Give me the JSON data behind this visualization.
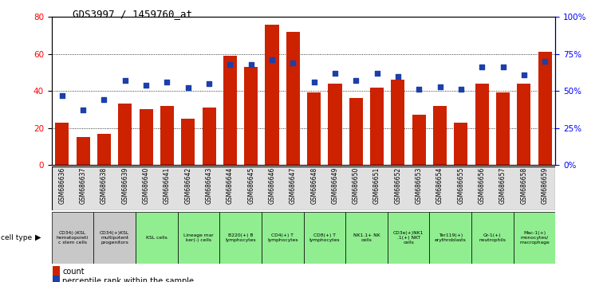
{
  "title": "GDS3997 / 1459760_at",
  "gsm_labels": [
    "GSM686636",
    "GSM686637",
    "GSM686638",
    "GSM686639",
    "GSM686640",
    "GSM686641",
    "GSM686642",
    "GSM686643",
    "GSM686644",
    "GSM686645",
    "GSM686646",
    "GSM686647",
    "GSM686648",
    "GSM686649",
    "GSM686650",
    "GSM686651",
    "GSM686652",
    "GSM686653",
    "GSM686654",
    "GSM686655",
    "GSM686656",
    "GSM686657",
    "GSM686658",
    "GSM686659"
  ],
  "bar_values": [
    23,
    15,
    17,
    33,
    30,
    32,
    25,
    31,
    59,
    53,
    76,
    72,
    39,
    44,
    36,
    42,
    46,
    27,
    32,
    23,
    44,
    39,
    44,
    61
  ],
  "percentile_values": [
    47,
    37,
    44,
    57,
    54,
    56,
    52,
    55,
    68,
    68,
    71,
    69,
    56,
    62,
    57,
    62,
    60,
    51,
    53,
    51,
    66,
    66,
    61,
    70
  ],
  "ylim_left": [
    0,
    80
  ],
  "ylim_right": [
    0,
    100
  ],
  "bar_color": "#cc2200",
  "dot_color": "#1c3faa",
  "cell_groups": [
    {
      "label": "CD34(-)KSL\nhematopoieti\nc stem cells",
      "start": 0,
      "end": 2,
      "color": "#c8c8c8"
    },
    {
      "label": "CD34(+)KSL\nmultipotent\nprogenitors",
      "start": 2,
      "end": 4,
      "color": "#c8c8c8"
    },
    {
      "label": "KSL cells",
      "start": 4,
      "end": 6,
      "color": "#90ee90"
    },
    {
      "label": "Lineage mar\nker(-) cells",
      "start": 6,
      "end": 8,
      "color": "#90ee90"
    },
    {
      "label": "B220(+) B\nlymphocytes",
      "start": 8,
      "end": 10,
      "color": "#90ee90"
    },
    {
      "label": "CD4(+) T\nlymphocytes",
      "start": 10,
      "end": 12,
      "color": "#90ee90"
    },
    {
      "label": "CD8(+) T\nlymphocytes",
      "start": 12,
      "end": 14,
      "color": "#90ee90"
    },
    {
      "label": "NK1.1+ NK\ncells",
      "start": 14,
      "end": 16,
      "color": "#90ee90"
    },
    {
      "label": "CD3e(+)NK1\n.1(+) NKT\ncells",
      "start": 16,
      "end": 18,
      "color": "#90ee90"
    },
    {
      "label": "Ter119(+)\nerythroblasts",
      "start": 18,
      "end": 20,
      "color": "#90ee90"
    },
    {
      "label": "Gr-1(+)\nneutrophils",
      "start": 20,
      "end": 22,
      "color": "#90ee90"
    },
    {
      "label": "Mac-1(+)\nmonocytes/\nmacrophage",
      "start": 22,
      "end": 24,
      "color": "#90ee90"
    }
  ],
  "left_yticks": [
    0,
    20,
    40,
    60,
    80
  ],
  "right_yticks": [
    0,
    25,
    50,
    75,
    100
  ],
  "right_yticklabels": [
    "0%",
    "25%",
    "50%",
    "75%",
    "100%"
  ]
}
